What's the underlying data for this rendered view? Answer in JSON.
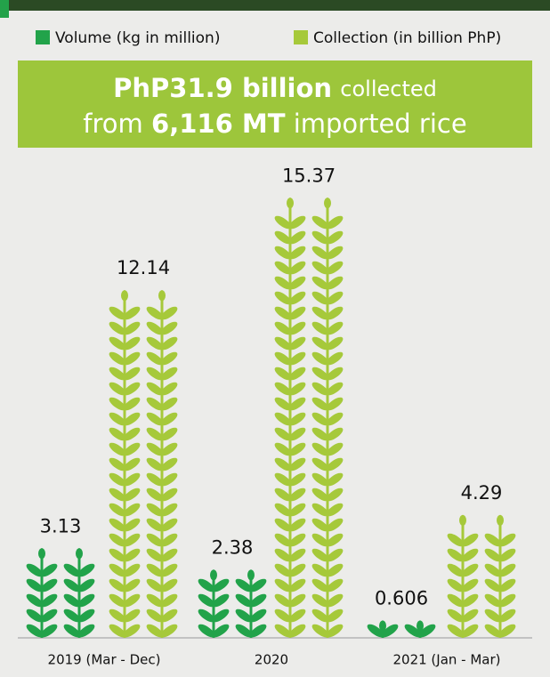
{
  "chart_data": {
    "type": "bar",
    "title_lines": [
      [
        "PhP31.9 billion",
        "collected"
      ],
      [
        "from",
        "6,116 MT",
        "imported rice"
      ]
    ],
    "categories": [
      "2019 (Mar - Dec)",
      "2020",
      "2021 (Jan - Mar)"
    ],
    "series": [
      {
        "name": "Volume (kg in million)",
        "color": "#22a34a",
        "values": [
          3.13,
          2.38,
          0.606
        ]
      },
      {
        "name": "Collection (in billion PhP)",
        "color": "#a6c93a",
        "values": [
          12.14,
          15.37,
          4.29
        ]
      }
    ],
    "ylim": [
      0,
      16
    ]
  }
}
